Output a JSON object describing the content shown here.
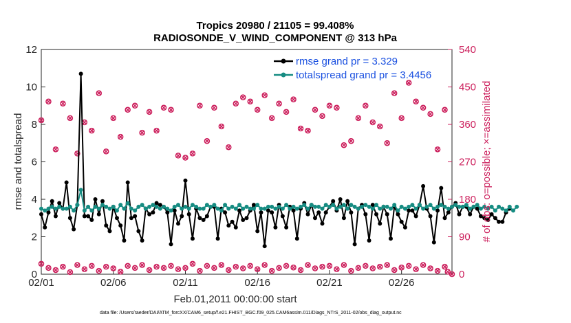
{
  "chart_data": {
    "type": "line",
    "title": "Tropics 20980 / 21105 = 99.408%",
    "subtitle": "RADIOSONDE_V_WIND_COMPONENT @ 313 hPa",
    "xlabel": "Feb.01,2011 00:00:00 start",
    "ylabel": "rmse and totalspread",
    "ylabel_right": "# of obs: o=possible; ×=assimilated",
    "footnote": "data file: /Users/raeder/DAI/ATM_forcXX/CAM6_setup/f.e21.FHIST_BGC.f09_025.CAM6assim.011/Diags_NTrS_2011-02/obs_diag_output.nc",
    "xlim": [
      1,
      29.5
    ],
    "ylim": [
      0,
      12
    ],
    "ylim_right": [
      0,
      540
    ],
    "x_ticks": [
      1,
      6,
      11,
      16,
      21,
      26
    ],
    "x_tick_labels": [
      "02/01",
      "02/06",
      "02/11",
      "02/16",
      "02/21",
      "02/26"
    ],
    "y_ticks": [
      0,
      2,
      4,
      6,
      8,
      10,
      12
    ],
    "y_tick_labels": [
      "0",
      "2",
      "4",
      "6",
      "8",
      "10",
      "12"
    ],
    "y_right_ticks": [
      0,
      90,
      180,
      270,
      360,
      450,
      540
    ],
    "y_right_tick_labels": [
      "0",
      "90",
      "180",
      "270",
      "360",
      "450",
      "540"
    ],
    "grid": false,
    "legend_position": "top-right",
    "colors": {
      "rmse": "#000000",
      "spread": "#168c82",
      "obs": "#cc1f5c",
      "legend_text": "#1a50e0"
    },
    "series": [
      {
        "name": "rmse",
        "legend": "rmse grand pr = 3.329",
        "x_start": 1,
        "x_step": 0.25,
        "values": [
          3.2,
          2.5,
          3.3,
          3.9,
          3.1,
          3.8,
          3.5,
          4.9,
          3.0,
          2.4,
          3.7,
          10.7,
          3.1,
          3.1,
          2.9,
          4.0,
          3.2,
          3.9,
          2.6,
          2.3,
          3.6,
          3.0,
          2.6,
          1.8,
          4.9,
          3.0,
          3.1,
          2.3,
          1.8,
          3.5,
          3.2,
          3.3,
          3.8,
          3.7,
          3.6,
          3.3,
          1.6,
          3.4,
          2.7,
          3.1,
          5.0,
          3.2,
          1.9,
          3.5,
          3.0,
          2.9,
          3.1,
          3.6,
          3.6,
          1.9,
          3.5,
          3.3,
          2.6,
          2.8,
          2.5,
          3.4,
          2.9,
          3.0,
          3.4,
          3.7,
          2.3,
          3.3,
          1.5,
          3.4,
          3.3,
          2.5,
          3.7,
          3.1,
          2.5,
          3.6,
          3.4,
          1.9,
          3.5,
          3.8,
          3.2,
          3.7,
          3.0,
          3.3,
          2.7,
          3.3,
          3.6,
          3.9,
          3.4,
          4.0,
          3.0,
          3.9,
          3.3,
          1.6,
          3.5,
          3.7,
          3.2,
          1.8,
          3.7,
          3.2,
          2.7,
          3.6,
          3.2,
          1.9,
          3.6,
          3.2,
          2.8,
          2.5,
          3.4,
          3.4,
          3.1,
          3.7,
          4.7,
          3.5,
          3.1,
          1.7,
          3.4,
          4.6,
          3.0,
          3.3,
          3.6,
          3.8,
          3.2,
          3.6,
          3.6,
          3.2,
          3.6,
          3.5,
          3.1,
          3.0,
          2.9,
          3.2,
          3.0,
          2.8,
          2.8,
          3.3,
          3.5
        ]
      },
      {
        "name": "totalspread",
        "legend": "totalspread grand pr = 3.4456",
        "x_start": 1,
        "x_step": 0.25,
        "values": [
          3.5,
          3.4,
          3.5,
          3.6,
          3.5,
          3.6,
          3.5,
          3.5,
          3.6,
          3.4,
          3.7,
          4.5,
          3.4,
          3.6,
          3.4,
          3.6,
          3.5,
          3.7,
          3.6,
          3.5,
          3.6,
          3.4,
          3.7,
          3.5,
          3.8,
          3.5,
          3.4,
          3.6,
          3.7,
          3.5,
          3.6,
          3.7,
          3.6,
          3.5,
          3.6,
          3.5,
          3.4,
          3.6,
          3.7,
          3.5,
          3.6,
          3.5,
          3.7,
          3.6,
          3.5,
          3.5,
          3.7,
          3.6,
          3.7,
          3.5,
          3.4,
          3.7,
          3.5,
          3.6,
          3.5,
          3.7,
          3.5,
          3.6,
          3.5,
          3.5,
          3.7,
          3.5,
          3.5,
          3.6,
          3.6,
          3.5,
          3.6,
          3.5,
          3.7,
          3.5,
          3.6,
          3.5,
          3.6,
          3.7,
          3.5,
          3.7,
          3.6,
          3.6,
          3.5,
          3.7,
          3.6,
          3.7,
          3.5,
          3.6,
          3.7,
          3.5,
          3.7,
          3.6,
          3.5,
          3.6,
          3.7,
          3.6,
          3.5,
          3.7,
          3.5,
          3.6,
          3.6,
          3.5,
          3.7,
          3.4,
          3.6,
          3.5,
          3.6,
          3.7,
          3.5,
          3.7,
          3.5,
          3.6,
          3.7,
          3.5,
          3.6,
          3.7,
          3.6,
          3.5,
          3.6,
          3.7,
          3.6,
          3.6,
          3.7,
          3.5,
          3.6,
          3.7,
          3.5,
          3.6,
          3.5,
          3.6,
          3.4,
          3.6,
          3.5,
          3.4,
          3.6,
          3.4,
          3.6
        ]
      }
    ],
    "obs_series": [
      {
        "name": "obs possible (large)",
        "axis": "right",
        "x": [
          1,
          1.5,
          2,
          2.5,
          3,
          3.5,
          4,
          4.5,
          5,
          5.5,
          6,
          6.5,
          7,
          7.5,
          8,
          8.5,
          9,
          9.5,
          10,
          10.5,
          11,
          11.5,
          12,
          12.5,
          13,
          13.5,
          14,
          14.5,
          15,
          15.5,
          16,
          16.5,
          17,
          17.5,
          18,
          18.5,
          19,
          19.5,
          20,
          20.5,
          21,
          21.5,
          22,
          22.5,
          23,
          23.5,
          24,
          24.5,
          25,
          25.5,
          26,
          26.5,
          27,
          27.5,
          28,
          28.5,
          29
        ],
        "values": [
          370,
          415,
          300,
          410,
          375,
          290,
          365,
          345,
          435,
          295,
          375,
          330,
          395,
          405,
          340,
          390,
          345,
          400,
          395,
          285,
          280,
          290,
          405,
          320,
          400,
          355,
          305,
          410,
          425,
          415,
          395,
          430,
          375,
          410,
          390,
          420,
          350,
          345,
          395,
          380,
          405,
          400,
          310,
          320,
          375,
          405,
          365,
          355,
          315,
          435,
          375,
          460,
          415,
          400,
          385,
          300,
          395
        ]
      },
      {
        "name": "obs possible (small)",
        "axis": "right",
        "x": [
          1,
          1.5,
          2,
          2.5,
          3,
          3.5,
          4,
          4.5,
          5,
          5.5,
          6,
          6.5,
          7,
          7.5,
          8,
          8.5,
          9,
          9.5,
          10,
          10.5,
          11,
          11.5,
          12,
          12.5,
          13,
          13.5,
          14,
          14.5,
          15,
          15.5,
          16,
          16.5,
          17,
          17.5,
          18,
          18.5,
          19,
          19.5,
          20,
          20.5,
          21,
          21.5,
          22,
          22.5,
          23,
          23.5,
          24,
          24.5,
          25,
          25.5,
          26,
          26.5,
          27,
          27.5,
          28,
          28.5,
          29,
          29.2,
          29.5
        ],
        "values": [
          25,
          15,
          10,
          18,
          5,
          22,
          12,
          20,
          8,
          18,
          14,
          6,
          20,
          15,
          22,
          10,
          18,
          15,
          20,
          12,
          15,
          25,
          8,
          20,
          15,
          22,
          10,
          18,
          14,
          20,
          12,
          22,
          8,
          15,
          20,
          16,
          10,
          22,
          14,
          18,
          20,
          12,
          22,
          8,
          15,
          20,
          14,
          18,
          22,
          10,
          16,
          20,
          12,
          22,
          14,
          8,
          18,
          6,
          0
        ]
      }
    ]
  }
}
